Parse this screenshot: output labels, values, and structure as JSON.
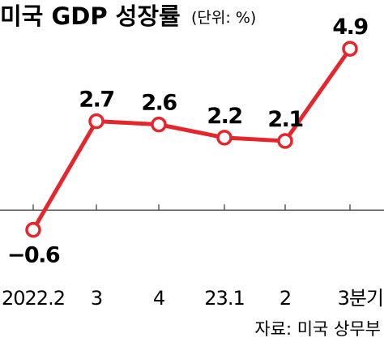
{
  "chart_data": {
    "type": "line",
    "title": "미국 GDP 성장률",
    "unit": "(단위: %)",
    "categories": [
      "2022.2",
      "3",
      "4",
      "23.1",
      "2",
      "3분기"
    ],
    "series": [
      {
        "values": [
          -0.6,
          2.7,
          2.6,
          2.2,
          2.1,
          4.9
        ]
      }
    ],
    "data_labels": [
      "−0.6",
      "2.7",
      "2.6",
      "2.2",
      "2.1",
      "4.9"
    ],
    "ylim": [
      -1.2,
      5.2
    ],
    "zero_line": true,
    "grid": false,
    "legend": "none",
    "line_color": "#e5262d",
    "marker_fill": "#ffffff",
    "source": "자료: 미국 상무부"
  }
}
